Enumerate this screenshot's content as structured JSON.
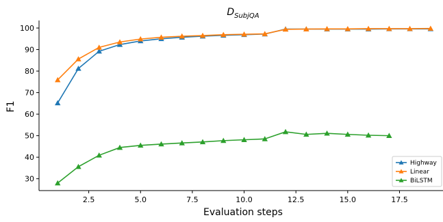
{
  "chart_data": {
    "type": "line",
    "title_main": "D",
    "title_sub": "SubjQA",
    "xlabel": "Evaluation steps",
    "ylabel": "F1",
    "xlim": [
      0.1,
      19.6
    ],
    "ylim": [
      24.5,
      103.5
    ],
    "xticks": [
      2.5,
      5.0,
      7.5,
      10.0,
      12.5,
      15.0,
      17.5
    ],
    "xtick_labels": [
      "2.5",
      "5.0",
      "7.5",
      "10.0",
      "12.5",
      "15.0",
      "17.5"
    ],
    "yticks": [
      30,
      40,
      50,
      60,
      70,
      80,
      90,
      100
    ],
    "ytick_labels": [
      "30",
      "40",
      "50",
      "60",
      "70",
      "80",
      "90",
      "100"
    ],
    "grid": false,
    "legend_position": "bottom-right",
    "marker": "triangle-up",
    "series": [
      {
        "name": "Highway",
        "color": "#1f77b4",
        "x": [
          1,
          2,
          3,
          4,
          5,
          6,
          7,
          8,
          9,
          10,
          11,
          12,
          13,
          14,
          15,
          16,
          17,
          18,
          19
        ],
        "y": [
          65.2,
          81.2,
          89.2,
          92.3,
          94.0,
          95.0,
          95.7,
          96.2,
          96.6,
          96.9,
          97.2,
          99.5,
          99.5,
          99.5,
          99.5,
          99.5,
          99.6,
          99.6,
          99.6
        ]
      },
      {
        "name": "Linear",
        "color": "#ff7f0e",
        "x": [
          1,
          2,
          3,
          4,
          5,
          6,
          7,
          8,
          9,
          10,
          11,
          12,
          13,
          14,
          15,
          16,
          17,
          18,
          19
        ],
        "y": [
          75.9,
          85.6,
          91.0,
          93.5,
          94.9,
          95.7,
          96.2,
          96.5,
          96.9,
          97.1,
          97.3,
          99.4,
          99.5,
          99.6,
          99.6,
          99.7,
          99.7,
          99.7,
          99.8
        ]
      },
      {
        "name": "BiLSTM",
        "color": "#2ca02c",
        "x": [
          1,
          2,
          3,
          4,
          5,
          6,
          7,
          8,
          9,
          10,
          11,
          12,
          13,
          14,
          15,
          16,
          17
        ],
        "y": [
          28.0,
          35.6,
          40.9,
          44.5,
          45.5,
          46.1,
          46.6,
          47.1,
          47.7,
          48.1,
          48.5,
          51.8,
          50.6,
          51.1,
          50.6,
          50.2,
          50.0
        ]
      }
    ]
  }
}
